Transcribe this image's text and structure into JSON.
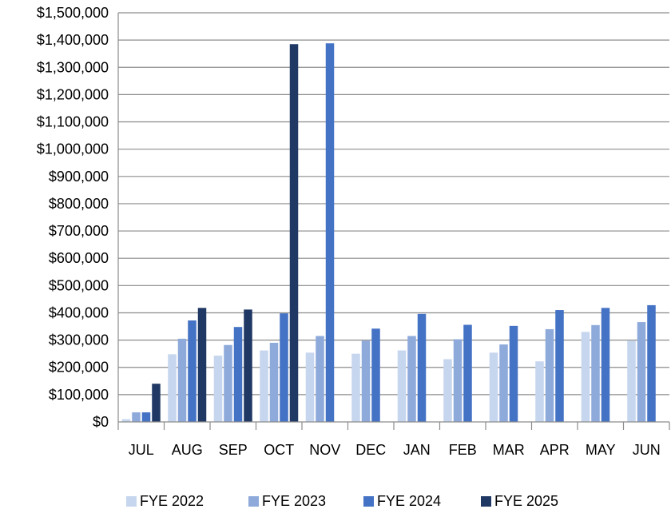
{
  "chart_data": {
    "type": "bar",
    "title": "",
    "xlabel": "",
    "ylabel": "",
    "ylim": [
      0,
      1500000
    ],
    "y_ticks": [
      0,
      100000,
      200000,
      300000,
      400000,
      500000,
      600000,
      700000,
      800000,
      900000,
      1000000,
      1100000,
      1200000,
      1300000,
      1400000,
      1500000
    ],
    "y_tick_labels": [
      "$0",
      "$100,000",
      "$200,000",
      "$300,000",
      "$400,000",
      "$500,000",
      "$600,000",
      "$700,000",
      "$800,000",
      "$900,000",
      "$1,000,000",
      "$1,100,000",
      "$1,200,000",
      "$1,300,000",
      "$1,400,000",
      "$1,500,000"
    ],
    "grid": true,
    "legend_position": "bottom",
    "categories": [
      "JUL",
      "AUG",
      "SEP",
      "OCT",
      "NOV",
      "DEC",
      "JAN",
      "FEB",
      "MAR",
      "APR",
      "MAY",
      "JUN"
    ],
    "series": [
      {
        "name": "FYE 2022",
        "color": "#c6d6ee",
        "values": [
          10000,
          248000,
          243000,
          262000,
          254000,
          250000,
          262000,
          230000,
          254000,
          222000,
          330000,
          298000
        ]
      },
      {
        "name": "FYE 2023",
        "color": "#8eaadb",
        "values": [
          35000,
          305000,
          282000,
          290000,
          315000,
          298000,
          315000,
          303000,
          284000,
          340000,
          355000,
          366000
        ]
      },
      {
        "name": "FYE 2024",
        "color": "#4472c4",
        "values": [
          35000,
          372000,
          348000,
          398000,
          1388000,
          342000,
          396000,
          356000,
          352000,
          410000,
          418000,
          428000
        ]
      },
      {
        "name": "FYE 2025",
        "color": "#203864",
        "values": [
          140000,
          418000,
          412000,
          1385000,
          null,
          null,
          null,
          null,
          null,
          null,
          null,
          null
        ]
      }
    ]
  }
}
